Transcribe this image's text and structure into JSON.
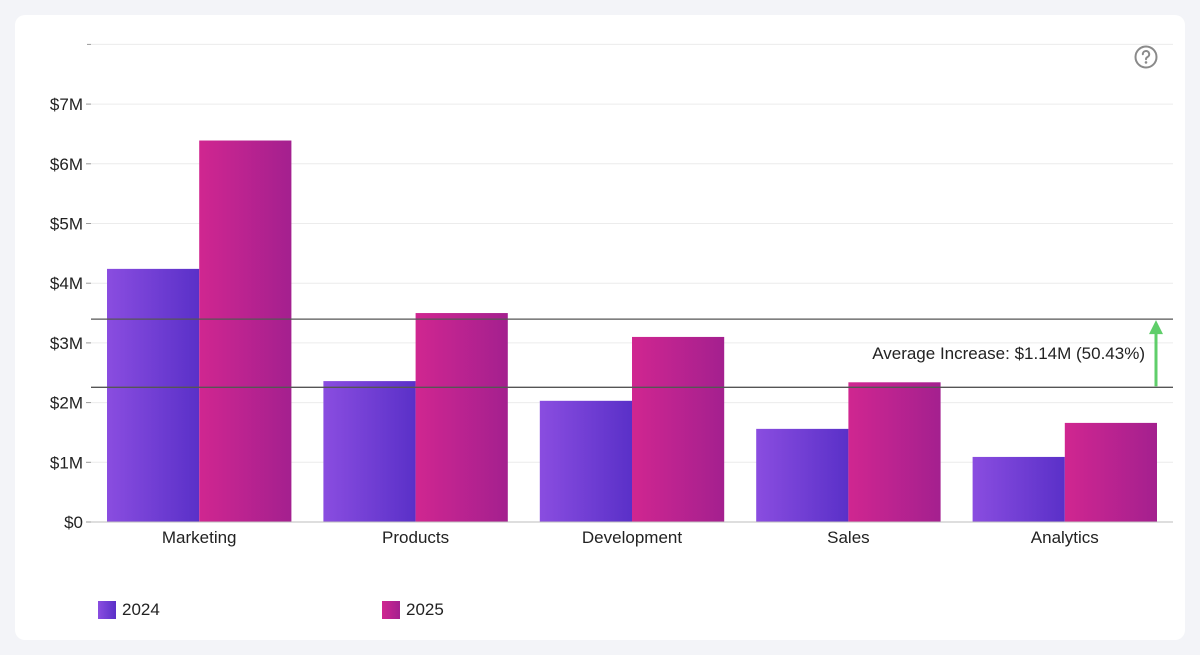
{
  "chart_data": {
    "type": "bar",
    "categories": [
      "Marketing",
      "Products",
      "Development",
      "Sales",
      "Analytics"
    ],
    "series": [
      {
        "name": "2024",
        "values": [
          4.24,
          2.36,
          2.03,
          1.56,
          1.09
        ]
      },
      {
        "name": "2025",
        "values": [
          6.39,
          3.5,
          3.1,
          2.34,
          1.66
        ]
      }
    ],
    "ylim": [
      0,
      8
    ],
    "yticks": [
      0,
      1,
      2,
      3,
      4,
      5,
      6,
      7
    ],
    "ytick_labels": [
      "$0",
      "$1M",
      "$2M",
      "$3M",
      "$4M",
      "$5M",
      "$6M",
      "$7M"
    ],
    "reference_lines": {
      "avg_2024": 2.256,
      "avg_2025": 3.398
    },
    "annotation": "Average Increase: $1.14M (50.43%)",
    "legend_position": "bottom-left"
  },
  "colors": {
    "s2024_start": "#8a4de0",
    "s2024_end": "#5a30c8",
    "s2025_start": "#d02690",
    "s2025_end": "#a4208f",
    "arrow": "#5fce6a",
    "refline": "#555555"
  },
  "help_icon": "question-circle-icon"
}
